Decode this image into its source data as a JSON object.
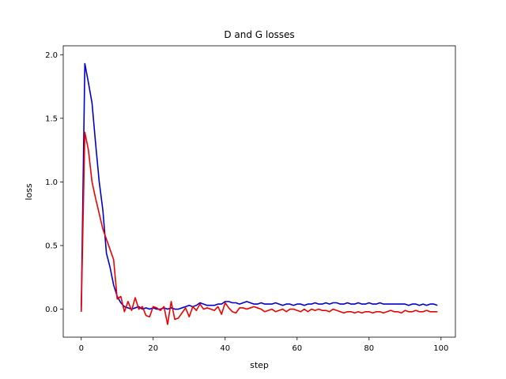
{
  "chart_data": {
    "type": "line",
    "title": "D and G losses",
    "xlabel": "step",
    "ylabel": "loss",
    "xlim": [
      -5,
      104
    ],
    "ylim": [
      -0.22,
      2.07
    ],
    "xticks": [
      0,
      20,
      40,
      60,
      80,
      100
    ],
    "yticks": [
      0.0,
      0.5,
      1.0,
      1.5,
      2.0
    ],
    "xtick_labels": [
      "0",
      "20",
      "40",
      "60",
      "80",
      "100"
    ],
    "ytick_labels": [
      "0.0",
      "0.5",
      "1.0",
      "1.5",
      "2.0"
    ],
    "grid": false,
    "legend": null,
    "series": [
      {
        "color": "#0000cc",
        "x": [
          0,
          1,
          2,
          3,
          4,
          5,
          6,
          7,
          8,
          9,
          10,
          11,
          12,
          13,
          14,
          15,
          16,
          17,
          18,
          19,
          20,
          21,
          22,
          23,
          24,
          25,
          26,
          27,
          28,
          29,
          30,
          31,
          32,
          33,
          34,
          35,
          36,
          37,
          38,
          39,
          40,
          41,
          42,
          43,
          44,
          45,
          46,
          47,
          48,
          49,
          50,
          51,
          52,
          53,
          54,
          55,
          56,
          57,
          58,
          59,
          60,
          61,
          62,
          63,
          64,
          65,
          66,
          67,
          68,
          69,
          70,
          71,
          72,
          73,
          74,
          75,
          76,
          77,
          78,
          79,
          80,
          81,
          82,
          83,
          84,
          85,
          86,
          87,
          88,
          89,
          90,
          91,
          92,
          93,
          94,
          95,
          96,
          97,
          98,
          99
        ],
        "values": [
          -0.02,
          1.93,
          1.78,
          1.62,
          1.3,
          1.0,
          0.78,
          0.44,
          0.33,
          0.19,
          0.1,
          0.05,
          0.02,
          0.01,
          0.0,
          0.01,
          0.02,
          0.0,
          0.01,
          0.0,
          0.01,
          0.0,
          0.0,
          0.01,
          0.0,
          0.01,
          0.0,
          0.0,
          0.01,
          0.02,
          0.03,
          0.02,
          0.03,
          0.05,
          0.04,
          0.03,
          0.03,
          0.03,
          0.04,
          0.04,
          0.06,
          0.06,
          0.05,
          0.05,
          0.04,
          0.05,
          0.06,
          0.05,
          0.04,
          0.04,
          0.05,
          0.04,
          0.04,
          0.04,
          0.05,
          0.04,
          0.03,
          0.04,
          0.04,
          0.03,
          0.04,
          0.04,
          0.03,
          0.04,
          0.04,
          0.05,
          0.04,
          0.04,
          0.05,
          0.04,
          0.05,
          0.05,
          0.04,
          0.04,
          0.05,
          0.04,
          0.04,
          0.05,
          0.04,
          0.04,
          0.05,
          0.04,
          0.04,
          0.05,
          0.04,
          0.04,
          0.04,
          0.04,
          0.04,
          0.04,
          0.04,
          0.03,
          0.04,
          0.04,
          0.03,
          0.04,
          0.03,
          0.04,
          0.04,
          0.03
        ]
      },
      {
        "color": "#ee0000",
        "x": [
          0,
          1,
          2,
          3,
          4,
          5,
          6,
          7,
          8,
          9,
          10,
          11,
          12,
          13,
          14,
          15,
          16,
          17,
          18,
          19,
          20,
          21,
          22,
          23,
          24,
          25,
          26,
          27,
          28,
          29,
          30,
          31,
          32,
          33,
          34,
          35,
          36,
          37,
          38,
          39,
          40,
          41,
          42,
          43,
          44,
          45,
          46,
          47,
          48,
          49,
          50,
          51,
          52,
          53,
          54,
          55,
          56,
          57,
          58,
          59,
          60,
          61,
          62,
          63,
          64,
          65,
          66,
          67,
          68,
          69,
          70,
          71,
          72,
          73,
          74,
          75,
          76,
          77,
          78,
          79,
          80,
          81,
          82,
          83,
          84,
          85,
          86,
          87,
          88,
          89,
          90,
          91,
          92,
          93,
          94,
          95,
          96,
          97,
          98,
          99
        ],
        "values": [
          -0.02,
          1.39,
          1.25,
          1.0,
          0.87,
          0.75,
          0.63,
          0.55,
          0.47,
          0.39,
          0.08,
          0.1,
          -0.02,
          0.06,
          -0.01,
          0.09,
          0.0,
          0.02,
          -0.05,
          -0.06,
          0.02,
          0.01,
          -0.01,
          0.02,
          -0.12,
          0.06,
          -0.08,
          -0.07,
          -0.03,
          0.01,
          -0.06,
          0.02,
          -0.01,
          0.04,
          0.0,
          0.01,
          0.0,
          -0.01,
          0.02,
          -0.04,
          0.05,
          0.01,
          -0.02,
          -0.03,
          0.01,
          0.01,
          0.0,
          0.01,
          0.02,
          0.01,
          0.0,
          -0.02,
          -0.01,
          0.0,
          -0.02,
          -0.01,
          0.0,
          -0.02,
          0.0,
          0.0,
          -0.01,
          -0.02,
          0.0,
          -0.02,
          0.0,
          -0.01,
          0.0,
          -0.01,
          -0.01,
          -0.02,
          0.0,
          -0.01,
          -0.02,
          -0.03,
          -0.02,
          -0.02,
          -0.03,
          -0.02,
          -0.03,
          -0.02,
          -0.02,
          -0.03,
          -0.02,
          -0.02,
          -0.03,
          -0.02,
          -0.01,
          -0.02,
          -0.02,
          -0.03,
          -0.01,
          -0.02,
          -0.02,
          -0.01,
          -0.02,
          -0.02,
          -0.01,
          -0.02,
          -0.02,
          -0.02
        ]
      }
    ]
  }
}
